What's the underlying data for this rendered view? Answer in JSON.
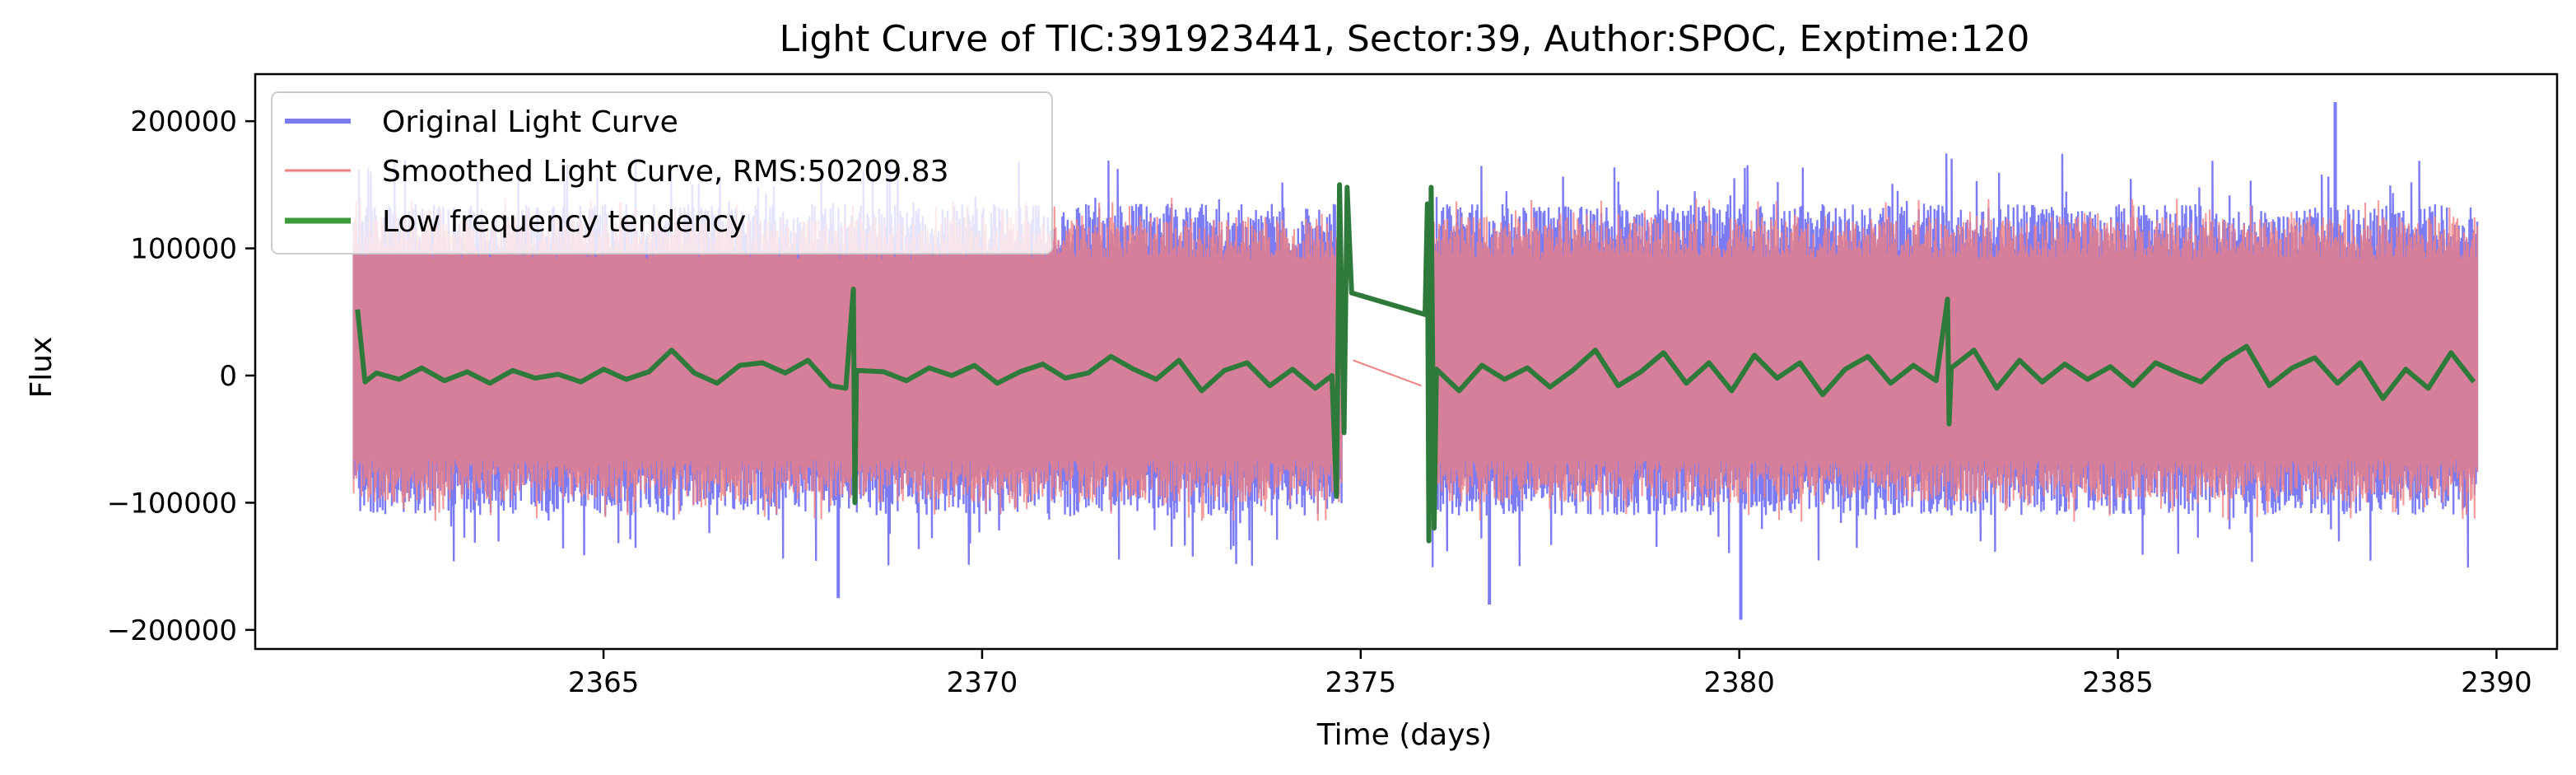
{
  "chart_data": {
    "type": "line",
    "title": "Light Curve of TIC:391923441, Sector:39, Author:SPOC, Exptime:120",
    "xlabel": "Time (days)",
    "ylabel": "Flux",
    "xlim": [
      2360.4,
      2390.8
    ],
    "ylim": [
      -215000,
      237000
    ],
    "xticks": [
      2365,
      2370,
      2375,
      2380,
      2385,
      2390
    ],
    "xtick_labels": [
      "2365",
      "2370",
      "2375",
      "2380",
      "2385",
      "2390"
    ],
    "yticks": [
      -200000,
      -100000,
      0,
      100000,
      200000
    ],
    "ytick_labels": [
      "−200000",
      "−100000",
      "0",
      "100000",
      "200000"
    ],
    "grid": false,
    "legend_position": "upper-left",
    "segments": [
      {
        "start": 2361.7,
        "end": 2374.75
      },
      {
        "start": 2375.95,
        "end": 2389.75
      }
    ],
    "series": [
      {
        "name": "Original Light Curve",
        "color": "#7b7bf5",
        "typical_range": [
          -110000,
          135000
        ],
        "min": -192000,
        "max": 215000,
        "notable_points": [
          {
            "x": 2387.87,
            "y": 215000
          },
          {
            "x": 2380.02,
            "y": -192000
          },
          {
            "x": 2368.1,
            "y": -175000
          },
          {
            "x": 2376.7,
            "y": -180000
          }
        ]
      },
      {
        "name": "Smoothed Light Curve, RMS:50209.83",
        "color": "#f08080",
        "rms": 50209.83,
        "typical_range": [
          -100000,
          125000
        ]
      },
      {
        "name": "Low frequency tendency",
        "color": "#3a9a3a",
        "points": [
          [
            2361.75,
            52000
          ],
          [
            2361.85,
            -5000
          ],
          [
            2362.0,
            2000
          ],
          [
            2362.3,
            -3000
          ],
          [
            2362.6,
            6000
          ],
          [
            2362.9,
            -4000
          ],
          [
            2363.2,
            3000
          ],
          [
            2363.5,
            -6000
          ],
          [
            2363.8,
            4000
          ],
          [
            2364.1,
            -2000
          ],
          [
            2364.4,
            1000
          ],
          [
            2364.7,
            -5000
          ],
          [
            2365.0,
            5000
          ],
          [
            2365.3,
            -3000
          ],
          [
            2365.6,
            3000
          ],
          [
            2365.9,
            20000
          ],
          [
            2366.2,
            2000
          ],
          [
            2366.5,
            -6000
          ],
          [
            2366.8,
            8000
          ],
          [
            2367.1,
            10000
          ],
          [
            2367.4,
            2000
          ],
          [
            2367.7,
            12000
          ],
          [
            2368.0,
            -8000
          ],
          [
            2368.2,
            -10000
          ],
          [
            2368.3,
            68000
          ],
          [
            2368.32,
            -100000
          ],
          [
            2368.34,
            4000
          ],
          [
            2368.7,
            3000
          ],
          [
            2369.0,
            -4000
          ],
          [
            2369.3,
            6000
          ],
          [
            2369.6,
            0
          ],
          [
            2369.9,
            8000
          ],
          [
            2370.2,
            -6000
          ],
          [
            2370.5,
            3000
          ],
          [
            2370.8,
            9000
          ],
          [
            2371.1,
            -2000
          ],
          [
            2371.4,
            2000
          ],
          [
            2371.7,
            15000
          ],
          [
            2372.0,
            5000
          ],
          [
            2372.3,
            -3000
          ],
          [
            2372.6,
            12000
          ],
          [
            2372.9,
            -12000
          ],
          [
            2373.2,
            4000
          ],
          [
            2373.5,
            10000
          ],
          [
            2373.8,
            -8000
          ],
          [
            2374.1,
            5000
          ],
          [
            2374.4,
            -10000
          ],
          [
            2374.62,
            0
          ],
          [
            2374.68,
            -95000
          ],
          [
            2374.72,
            150000
          ],
          [
            2374.78,
            -45000
          ],
          [
            2374.82,
            148000
          ],
          [
            2374.88,
            65000
          ],
          [
            2375.85,
            48000
          ],
          [
            2375.88,
            135000
          ],
          [
            2375.9,
            -130000
          ],
          [
            2375.93,
            148000
          ],
          [
            2375.97,
            -120000
          ],
          [
            2376.0,
            5000
          ],
          [
            2376.3,
            -12000
          ],
          [
            2376.6,
            8000
          ],
          [
            2376.9,
            -3000
          ],
          [
            2377.2,
            6000
          ],
          [
            2377.5,
            -9000
          ],
          [
            2377.8,
            4000
          ],
          [
            2378.1,
            20000
          ],
          [
            2378.4,
            -8000
          ],
          [
            2378.7,
            3000
          ],
          [
            2379.0,
            18000
          ],
          [
            2379.3,
            -6000
          ],
          [
            2379.6,
            10000
          ],
          [
            2379.9,
            -12000
          ],
          [
            2380.2,
            16000
          ],
          [
            2380.5,
            -2000
          ],
          [
            2380.8,
            10000
          ],
          [
            2381.1,
            -15000
          ],
          [
            2381.4,
            5000
          ],
          [
            2381.7,
            15000
          ],
          [
            2382.0,
            -6000
          ],
          [
            2382.3,
            8000
          ],
          [
            2382.6,
            -4000
          ],
          [
            2382.75,
            60000
          ],
          [
            2382.77,
            -38000
          ],
          [
            2382.8,
            6000
          ],
          [
            2383.1,
            20000
          ],
          [
            2383.4,
            -10000
          ],
          [
            2383.7,
            12000
          ],
          [
            2384.0,
            -5000
          ],
          [
            2384.3,
            9000
          ],
          [
            2384.6,
            -3000
          ],
          [
            2384.9,
            7000
          ],
          [
            2385.2,
            -8000
          ],
          [
            2385.5,
            10000
          ],
          [
            2385.8,
            2000
          ],
          [
            2386.1,
            -5000
          ],
          [
            2386.4,
            12000
          ],
          [
            2386.7,
            23000
          ],
          [
            2387.0,
            -8000
          ],
          [
            2387.3,
            6000
          ],
          [
            2387.6,
            14000
          ],
          [
            2387.9,
            -6000
          ],
          [
            2388.2,
            10000
          ],
          [
            2388.5,
            -18000
          ],
          [
            2388.8,
            5000
          ],
          [
            2389.1,
            -10000
          ],
          [
            2389.4,
            18000
          ],
          [
            2389.7,
            -5000
          ]
        ]
      }
    ]
  }
}
